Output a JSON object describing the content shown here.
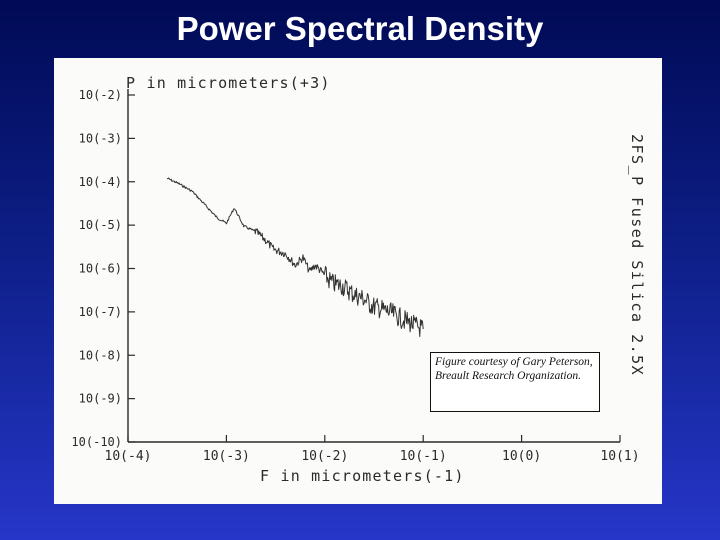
{
  "slide": {
    "title": "Power Spectral Density",
    "credit": "Figure courtesy of Gary Peterson, Breault Research Organization."
  },
  "chart_data": {
    "type": "line",
    "title": "",
    "ylabel": "P in micrometers(+3)",
    "xlabel": "F in micrometers(-1)",
    "side_label": "2FS_P Fused Silica 2.5X",
    "x_scale": "log",
    "y_scale": "log",
    "xlim": [
      0.0001,
      10
    ],
    "ylim": [
      1e-10,
      0.01
    ],
    "x_ticks": [
      {
        "value": 0.0001,
        "label": "10(-4)"
      },
      {
        "value": 0.001,
        "label": "10(-3)"
      },
      {
        "value": 0.01,
        "label": "10(-2)"
      },
      {
        "value": 0.1,
        "label": "10(-1)"
      },
      {
        "value": 1,
        "label": "10(0)"
      },
      {
        "value": 10,
        "label": "10(1)"
      }
    ],
    "y_ticks": [
      {
        "value": 0.01,
        "label": "10(-2)"
      },
      {
        "value": 0.001,
        "label": "10(-3)"
      },
      {
        "value": 0.0001,
        "label": "10(-4)"
      },
      {
        "value": 1e-05,
        "label": "10(-5)"
      },
      {
        "value": 1e-06,
        "label": "10(-6)"
      },
      {
        "value": 1e-07,
        "label": "10(-7)"
      },
      {
        "value": 1e-08,
        "label": "10(-8)"
      },
      {
        "value": 1e-09,
        "label": "10(-9)"
      },
      {
        "value": 1e-10,
        "label": "10(-10)"
      }
    ],
    "series": [
      {
        "color": "#333333",
        "points": [
          [
            0.00025,
            0.00012
          ],
          [
            0.00033,
            9e-05
          ],
          [
            0.00045,
            6e-05
          ],
          [
            0.0006,
            3e-05
          ],
          [
            0.0008,
            1.5e-05
          ],
          [
            0.001,
            1.1e-05
          ],
          [
            0.0012,
            2.5e-05
          ],
          [
            0.0015,
            9.5e-06
          ],
          [
            0.002,
            7e-06
          ],
          [
            0.0025,
            4.5e-06
          ],
          [
            0.003,
            2.8e-06
          ],
          [
            0.004,
            2.2e-06
          ],
          [
            0.005,
            1.2e-06
          ],
          [
            0.006,
            1.8e-06
          ],
          [
            0.007,
            8.5e-07
          ],
          [
            0.008,
            1.2e-06
          ],
          [
            0.01,
            7e-07
          ],
          [
            0.012,
            4.5e-07
          ],
          [
            0.015,
            4e-07
          ],
          [
            0.02,
            2.5e-07
          ],
          [
            0.025,
            2e-07
          ],
          [
            0.03,
            1.4e-07
          ],
          [
            0.04,
            1.1e-07
          ],
          [
            0.05,
            9e-08
          ],
          [
            0.06,
            7e-08
          ],
          [
            0.07,
            6e-08
          ],
          [
            0.08,
            5e-08
          ],
          [
            0.1,
            4e-08
          ]
        ]
      }
    ]
  }
}
